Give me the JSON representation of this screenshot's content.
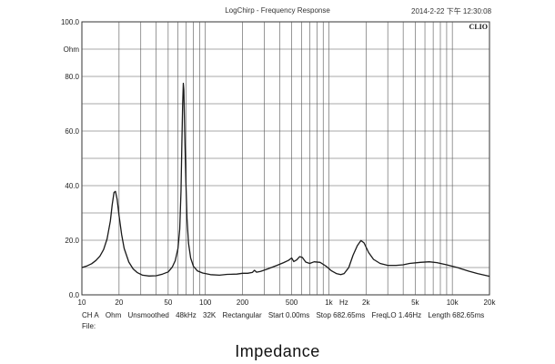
{
  "chart_data": {
    "type": "line",
    "title": "LogChirp - Frequency Response",
    "timestamp": "2014-2-22 下午 12:30:08",
    "brand": "CLIO",
    "ylabel_unit": "Ohm",
    "xlabel_unit": "Hz",
    "x_scale": "log",
    "xlim": [
      10,
      20000
    ],
    "ylim": [
      0,
      100
    ],
    "grid": true,
    "x_ticks": [
      {
        "v": 10,
        "t": "10"
      },
      {
        "v": 20,
        "t": "20"
      },
      {
        "v": 50,
        "t": "50"
      },
      {
        "v": 100,
        "t": "100"
      },
      {
        "v": 200,
        "t": "200"
      },
      {
        "v": 500,
        "t": "500"
      },
      {
        "v": 1000,
        "t": "1k"
      },
      {
        "v": 2000,
        "t": "2k"
      },
      {
        "v": 5000,
        "t": "5k"
      },
      {
        "v": 10000,
        "t": "10k"
      },
      {
        "v": 20000,
        "t": "20k"
      }
    ],
    "y_ticks": [
      {
        "v": 0,
        "t": "0.0"
      },
      {
        "v": 20,
        "t": "20.0"
      },
      {
        "v": 40,
        "t": "40.0"
      },
      {
        "v": 60,
        "t": "60.0"
      },
      {
        "v": 80,
        "t": "80.0"
      },
      {
        "v": 100,
        "t": "100.0"
      }
    ],
    "series": [
      {
        "color": "#1a1a1a",
        "points": [
          [
            10,
            10
          ],
          [
            11,
            10.6
          ],
          [
            12,
            11.4
          ],
          [
            13,
            12.6
          ],
          [
            14,
            14.2
          ],
          [
            15,
            16.6
          ],
          [
            16,
            20.5
          ],
          [
            17,
            27
          ],
          [
            17.6,
            33
          ],
          [
            18.2,
            37.5
          ],
          [
            18.7,
            37.9
          ],
          [
            19.3,
            35
          ],
          [
            20,
            29
          ],
          [
            21,
            22
          ],
          [
            22,
            17
          ],
          [
            24,
            12
          ],
          [
            26,
            9.5
          ],
          [
            28,
            8.2
          ],
          [
            31,
            7.2
          ],
          [
            35,
            6.9
          ],
          [
            40,
            7
          ],
          [
            45,
            7.6
          ],
          [
            50,
            8.4
          ],
          [
            54,
            10.2
          ],
          [
            57,
            12.5
          ],
          [
            60,
            17
          ],
          [
            62,
            24
          ],
          [
            63.5,
            38
          ],
          [
            64.5,
            55
          ],
          [
            65.5,
            70
          ],
          [
            66.3,
            77.5
          ],
          [
            67,
            75
          ],
          [
            68,
            60
          ],
          [
            69.5,
            42
          ],
          [
            71,
            28
          ],
          [
            73,
            19
          ],
          [
            76,
            13.5
          ],
          [
            80,
            10.5
          ],
          [
            86,
            8.8
          ],
          [
            95,
            8
          ],
          [
            110,
            7.4
          ],
          [
            130,
            7.2
          ],
          [
            150,
            7.5
          ],
          [
            180,
            7.6
          ],
          [
            200,
            7.9
          ],
          [
            220,
            7.9
          ],
          [
            240,
            8.2
          ],
          [
            250,
            9
          ],
          [
            260,
            8.3
          ],
          [
            280,
            8.6
          ],
          [
            320,
            9.5
          ],
          [
            380,
            10.8
          ],
          [
            430,
            11.8
          ],
          [
            470,
            12.6
          ],
          [
            500,
            13.5
          ],
          [
            520,
            12.2
          ],
          [
            550,
            12.8
          ],
          [
            580,
            14
          ],
          [
            610,
            13.7
          ],
          [
            650,
            12
          ],
          [
            700,
            11.5
          ],
          [
            760,
            12.1
          ],
          [
            850,
            11.9
          ],
          [
            950,
            10.5
          ],
          [
            1050,
            8.8
          ],
          [
            1150,
            7.8
          ],
          [
            1250,
            7.4
          ],
          [
            1330,
            7.8
          ],
          [
            1450,
            10
          ],
          [
            1570,
            14.5
          ],
          [
            1700,
            18
          ],
          [
            1820,
            19.9
          ],
          [
            1930,
            19
          ],
          [
            2100,
            15.5
          ],
          [
            2300,
            13
          ],
          [
            2600,
            11.5
          ],
          [
            3000,
            10.8
          ],
          [
            3500,
            10.8
          ],
          [
            4000,
            11
          ],
          [
            4500,
            11.5
          ],
          [
            5500,
            11.9
          ],
          [
            6500,
            12.1
          ],
          [
            7500,
            11.8
          ],
          [
            9000,
            11
          ],
          [
            11000,
            10
          ],
          [
            13500,
            8.7
          ],
          [
            16000,
            7.8
          ],
          [
            20000,
            6.8
          ]
        ]
      }
    ]
  },
  "info_line": {
    "channel": "CH A",
    "unit": "Ohm",
    "smoothing": "Unsmoothed",
    "sample_rate": "48kHz",
    "size": "32K",
    "window": "Rectangular",
    "start": "Start 0.00ms",
    "stop": "Stop 682.65ms",
    "freqlo": "FreqLO 1.46Hz",
    "length": "Length 682.65ms"
  },
  "file_label": "File:",
  "caption": "Impedance"
}
